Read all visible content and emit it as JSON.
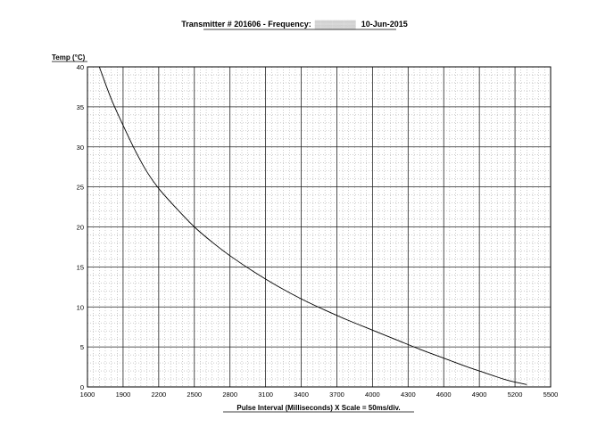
{
  "chart_data": {
    "type": "line",
    "title_prefix": "Transmitter # 201606 - Frequency:",
    "title_date": "10-Jun-2015",
    "ylabel": "Temp (°C)",
    "xlabel": "Pulse Interval (Milliseconds)  X Scale = 50ms/div.",
    "xlim": [
      1600,
      5500
    ],
    "ylim": [
      0,
      40
    ],
    "x_ticks": [
      "1600",
      "1900",
      "2200",
      "2500",
      "2800",
      "3100",
      "3400",
      "3700",
      "4000",
      "4300",
      "4600",
      "4900",
      "5200",
      "5500"
    ],
    "y_ticks": [
      "0",
      "5",
      "10",
      "15",
      "20",
      "25",
      "30",
      "35",
      "40"
    ],
    "x_major_step": 300,
    "y_major_step": 5,
    "minor_x_divisions": 6,
    "minor_y_divisions": 5,
    "grid": true,
    "series": [
      {
        "x": [
          1700,
          1800,
          1900,
          2000,
          2100,
          2200,
          2350,
          2500,
          2650,
          2800,
          3000,
          3200,
          3400,
          3600,
          3800,
          4000,
          4200,
          4400,
          4600,
          4800,
          5000,
          5100,
          5200,
          5300
        ],
        "y": [
          40.0,
          36.0,
          32.7,
          29.6,
          26.9,
          24.8,
          22.3,
          20.0,
          18.1,
          16.4,
          14.4,
          12.6,
          11.0,
          9.6,
          8.3,
          7.1,
          5.9,
          4.7,
          3.6,
          2.5,
          1.5,
          1.0,
          0.6,
          0.3
        ]
      }
    ]
  },
  "colors": {
    "axis": "#000000",
    "major_grid": "#222222",
    "minor_grid": "#9a9a9a",
    "curve": "#000000"
  }
}
